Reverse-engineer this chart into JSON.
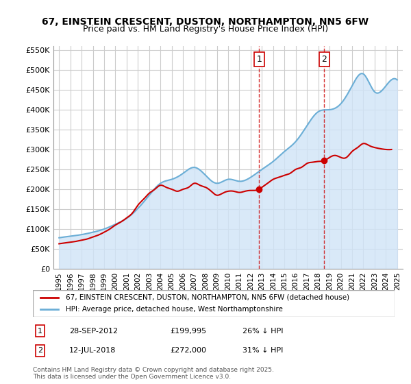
{
  "title": "67, EINSTEIN CRESCENT, DUSTON, NORTHAMPTON, NN5 6FW",
  "subtitle": "Price paid vs. HM Land Registry's House Price Index (HPI)",
  "xlabel": "",
  "ylabel": "",
  "background_color": "#ffffff",
  "plot_bg_color": "#ffffff",
  "grid_color": "#cccccc",
  "legend_label_red": "67, EINSTEIN CRESCENT, DUSTON, NORTHAMPTON, NN5 6FW (detached house)",
  "legend_label_blue": "HPI: Average price, detached house, West Northamptonshire",
  "annotation1_label": "1",
  "annotation1_date": "28-SEP-2012",
  "annotation1_price": "£199,995",
  "annotation1_hpi": "26% ↓ HPI",
  "annotation2_label": "2",
  "annotation2_date": "12-JUL-2018",
  "annotation2_price": "£272,000",
  "annotation2_hpi": "31% ↓ HPI",
  "footer": "Contains HM Land Registry data © Crown copyright and database right 2025.\nThis data is licensed under the Open Government Licence v3.0.",
  "red_color": "#cc0000",
  "blue_color": "#6baed6",
  "blue_fill_color": "#d0e4f7",
  "vline_color": "#cc0000",
  "vline_style": "--",
  "years": [
    1995,
    1996,
    1997,
    1998,
    1999,
    2000,
    2001,
    2002,
    2003,
    2004,
    2005,
    2006,
    2007,
    2008,
    2009,
    2010,
    2011,
    2012,
    2013,
    2014,
    2015,
    2016,
    2017,
    2018,
    2019,
    2020,
    2021,
    2022,
    2023,
    2024,
    2025
  ],
  "hpi_values": [
    78000,
    82000,
    86000,
    92000,
    100000,
    112000,
    127000,
    152000,
    185000,
    215000,
    225000,
    240000,
    255000,
    235000,
    215000,
    225000,
    220000,
    230000,
    250000,
    270000,
    295000,
    320000,
    360000,
    395000,
    400000,
    415000,
    460000,
    490000,
    445000,
    460000,
    475000
  ],
  "red_x": [
    1995.0,
    1995.5,
    1996.0,
    1996.5,
    1997.0,
    1997.5,
    1998.0,
    1998.5,
    1999.0,
    1999.5,
    2000.0,
    2000.5,
    2001.0,
    2001.5,
    2002.0,
    2002.5,
    2003.0,
    2003.5,
    2004.0,
    2004.5,
    2005.0,
    2005.5,
    2006.0,
    2006.5,
    2007.0,
    2007.5,
    2008.0,
    2008.5,
    2009.0,
    2009.5,
    2010.0,
    2010.5,
    2011.0,
    2011.5,
    2012.0,
    2012.75,
    2013.0,
    2013.5,
    2014.0,
    2014.5,
    2015.0,
    2015.5,
    2016.0,
    2016.5,
    2017.0,
    2017.5,
    2018.0,
    2018.53,
    2019.0,
    2019.5,
    2020.0,
    2020.5,
    2021.0,
    2021.5,
    2022.0,
    2022.5,
    2023.0,
    2023.5,
    2024.0,
    2024.5
  ],
  "red_values": [
    63000,
    65000,
    67000,
    69000,
    72000,
    75000,
    80000,
    85000,
    92000,
    100000,
    110000,
    118000,
    128000,
    140000,
    160000,
    175000,
    190000,
    200000,
    210000,
    205000,
    200000,
    195000,
    200000,
    205000,
    215000,
    210000,
    205000,
    195000,
    185000,
    190000,
    195000,
    195000,
    192000,
    195000,
    197000,
    199995,
    205000,
    215000,
    225000,
    230000,
    235000,
    240000,
    250000,
    255000,
    265000,
    268000,
    270000,
    272000,
    280000,
    285000,
    280000,
    280000,
    295000,
    305000,
    315000,
    310000,
    305000,
    302000,
    300000,
    300000
  ],
  "marker1_x": 2012.75,
  "marker1_y": 199995,
  "marker2_x": 2018.53,
  "marker2_y": 272000,
  "vline1_x": 2012.75,
  "vline2_x": 2018.53,
  "ylim": [
    0,
    560000
  ],
  "xlim": [
    1994.5,
    2025.5
  ],
  "yticks": [
    0,
    50000,
    100000,
    150000,
    200000,
    250000,
    300000,
    350000,
    400000,
    450000,
    500000,
    550000
  ],
  "ytick_labels": [
    "£0",
    "£50K",
    "£100K",
    "£150K",
    "£200K",
    "£250K",
    "£300K",
    "£350K",
    "£400K",
    "£450K",
    "£500K",
    "£550K"
  ]
}
